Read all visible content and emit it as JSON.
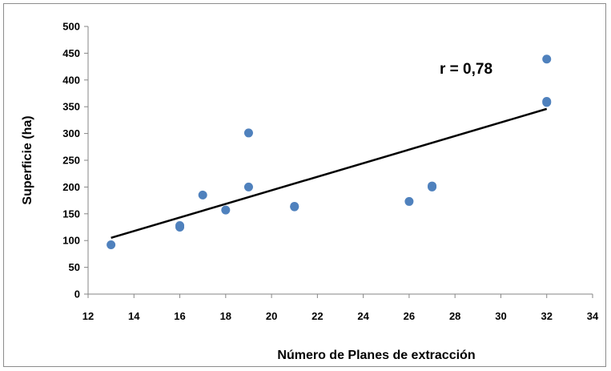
{
  "chart_data": {
    "type": "scatter",
    "title": "",
    "xlabel": "Número de Planes de extracción",
    "ylabel": "Superficie (ha)",
    "xlim": [
      12,
      34
    ],
    "ylim": [
      0,
      500
    ],
    "x_ticks": [
      "12",
      "14",
      "16",
      "18",
      "20",
      "22",
      "24",
      "26",
      "28",
      "30",
      "32",
      "34"
    ],
    "y_ticks": [
      "0",
      "50",
      "100",
      "150",
      "200",
      "250",
      "300",
      "350",
      "400",
      "450",
      "500"
    ],
    "grid": false,
    "legend": "none",
    "series": [
      {
        "color": "#4f81bd",
        "points": [
          {
            "x": 13,
            "y": 92
          },
          {
            "x": 16,
            "y": 125
          },
          {
            "x": 16,
            "y": 128
          },
          {
            "x": 17,
            "y": 185
          },
          {
            "x": 18,
            "y": 157
          },
          {
            "x": 19,
            "y": 200
          },
          {
            "x": 19,
            "y": 301
          },
          {
            "x": 21,
            "y": 163
          },
          {
            "x": 21,
            "y": 164
          },
          {
            "x": 26,
            "y": 173
          },
          {
            "x": 27,
            "y": 200
          },
          {
            "x": 27,
            "y": 202
          },
          {
            "x": 32,
            "y": 358
          },
          {
            "x": 32,
            "y": 360
          },
          {
            "x": 32,
            "y": 439
          }
        ]
      }
    ],
    "trendline": {
      "x": [
        13,
        32
      ],
      "y": [
        105,
        346
      ],
      "color": "#000000"
    },
    "annotation": "r = 0,78"
  }
}
